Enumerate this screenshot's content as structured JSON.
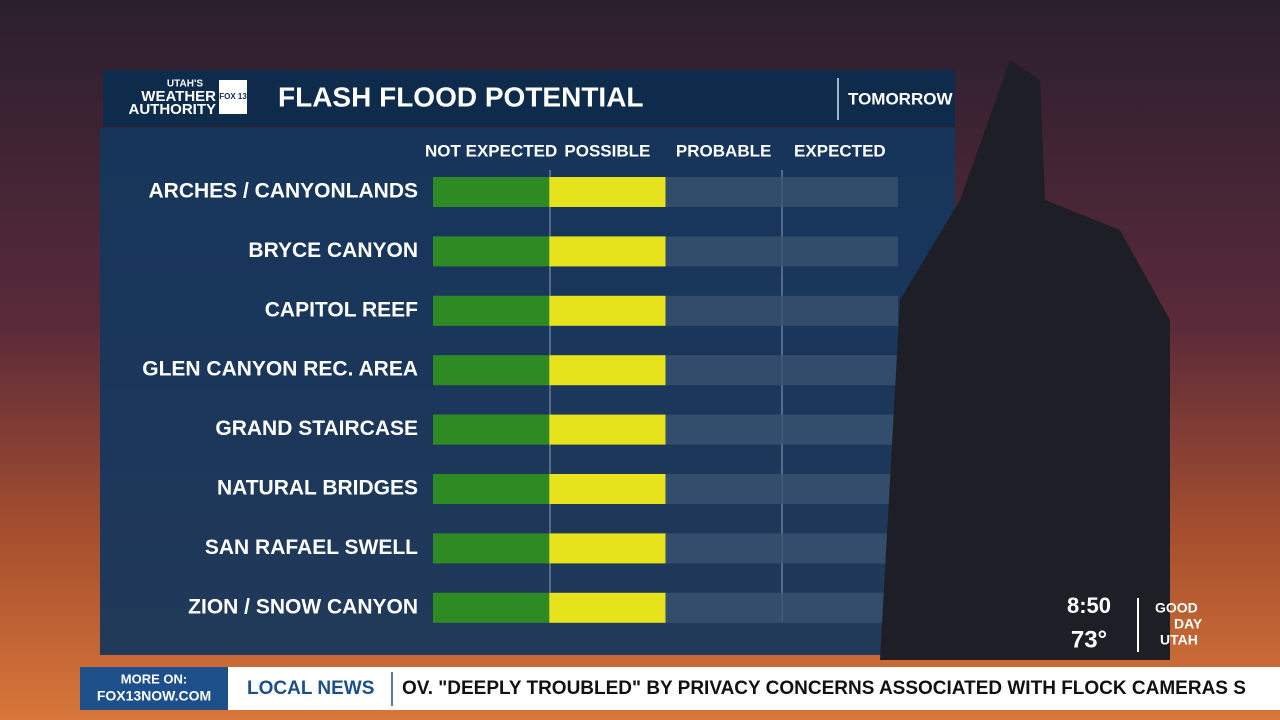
{
  "chart_data": {
    "type": "level-bar",
    "title": "FLASH FLOOD POTENTIAL",
    "subtitle": "TOMORROW",
    "categories": [
      "ARCHES / CANYONLANDS",
      "BRYCE CANYON",
      "CAPITOL REEF",
      "GLEN CANYON REC. AREA",
      "GRAND STAIRCASE",
      "NATURAL BRIDGES",
      "SAN RAFAEL SWELL",
      "ZION / SNOW CANYON"
    ],
    "values": [
      2,
      2,
      2,
      2,
      2,
      2,
      2,
      2
    ],
    "level_colors": [
      "#2e8a22",
      "#e6e21c",
      "#e07a1c",
      "#c8201c"
    ],
    "xlim": [
      0,
      4
    ],
    "xticks": [
      {
        "value": 1,
        "label": "NOT EXPECTED"
      },
      {
        "value": 2,
        "label": "POSSIBLE"
      },
      {
        "value": 3,
        "label": "PROBABLE"
      },
      {
        "value": 4,
        "label": "EXPECTED"
      }
    ]
  },
  "logo": {
    "line1": "UTAH'S",
    "line2": "WEATHER",
    "line3": "AUTHORITY",
    "badge": "FOX 13"
  },
  "bug": {
    "time": "8:50",
    "temp": "73°",
    "show1": "GOOD",
    "show2": "DAY",
    "show3": "UTAH"
  },
  "ticker": {
    "more": "MORE ON:",
    "site": "FOX13NOW.COM",
    "section": "LOCAL NEWS",
    "headline": "OV. \"DEEPLY TROUBLED\" BY PRIVACY CONCERNS ASSOCIATED WITH FLOCK CAMERAS S"
  }
}
